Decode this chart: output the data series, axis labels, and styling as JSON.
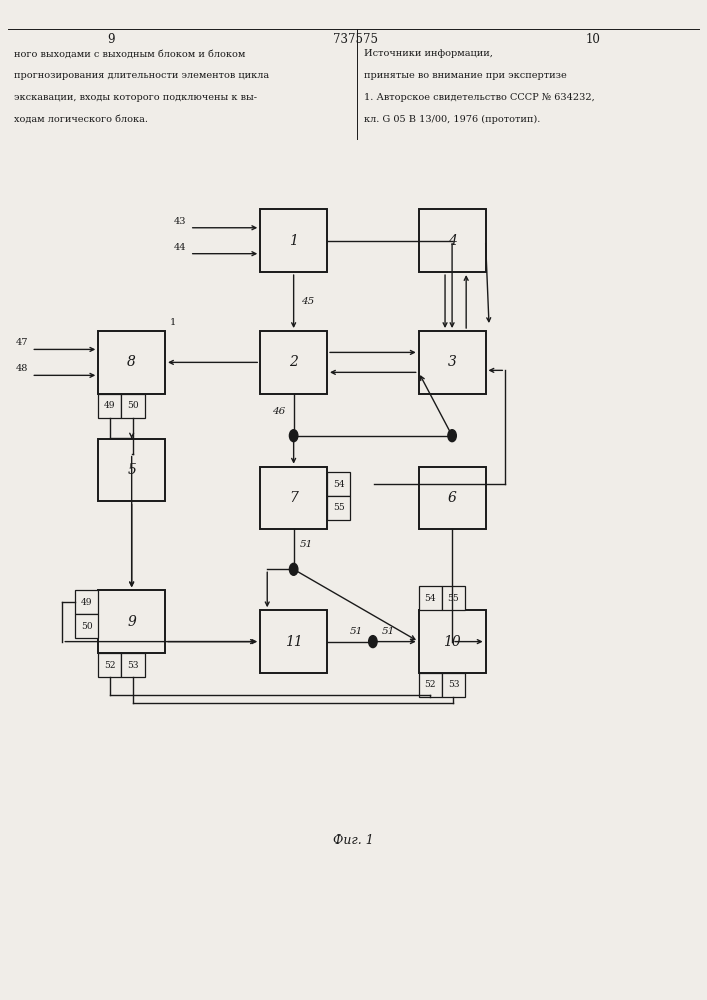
{
  "bg_color": "#f0ede8",
  "box_color": "#f0ede8",
  "box_edge_color": "#1a1a1a",
  "line_color": "#1a1a1a",
  "fig_width": 7.07,
  "fig_height": 10.0,
  "header_left_lines": [
    "ного выходами с выходным блоком и блоком",
    "прогнозирования длительности элементов цикла",
    "экскавации, входы которого подключены к вы-",
    "ходам логического блока."
  ],
  "header_right_lines": [
    "Источники информации,",
    "принятые во внимание при экспертизе",
    "1. Авторское свидетельство СССР № 634232,",
    "кл. G 05 B 13/00, 1976 (прототип)."
  ],
  "page_num_left": "9",
  "page_num_center": "737575",
  "page_num_right": "10",
  "caption": "Фиг. 1"
}
